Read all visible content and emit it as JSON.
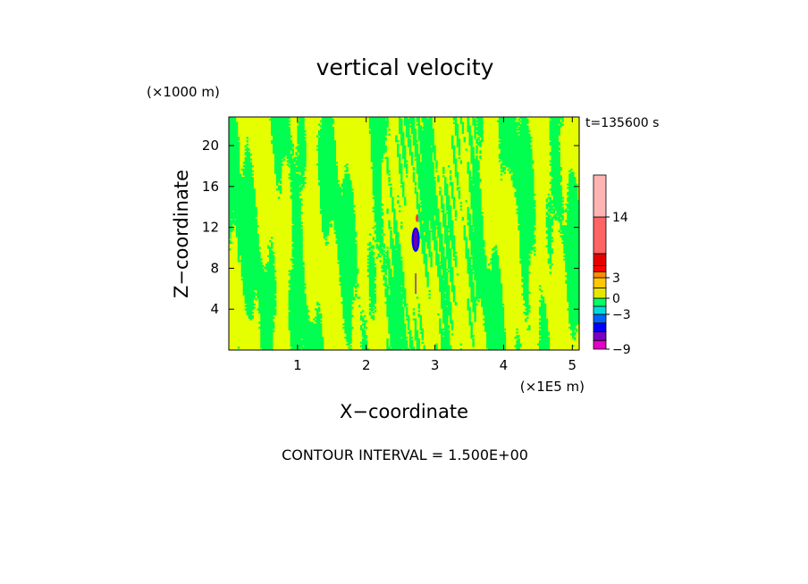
{
  "chart_data": {
    "type": "heatmap",
    "title": "vertical velocity",
    "xlabel": "X−coordinate",
    "ylabel": "Z−coordinate",
    "x_unit": "(×1E5 m)",
    "y_unit": "(×1000 m)",
    "time_label": "t=135600 s",
    "footer": "CONTOUR INTERVAL = 1.500E+00",
    "xlim": [
      0,
      5.1
    ],
    "ylim": [
      0,
      22.8
    ],
    "x_ticks": [
      1,
      2,
      3,
      4,
      5
    ],
    "x_tick_labels": [
      "1",
      "2",
      "3",
      "4",
      "5"
    ],
    "y_ticks": [
      4,
      8,
      12,
      16,
      20
    ],
    "y_tick_labels": [
      "4",
      "8",
      "12",
      "16",
      "20"
    ],
    "colorbar": {
      "levels": [
        -9,
        -7.5,
        -6,
        -4.5,
        -3,
        -1.5,
        0,
        1.5,
        3,
        4.5,
        6,
        9,
        14,
        18
      ],
      "colors": [
        "#e600c8",
        "#7a00c8",
        "#0000ff",
        "#0064ff",
        "#00dcdc",
        "#00ff64",
        "#e6e600",
        "#ffc800",
        "#ff8c00",
        "#ff0000",
        "#e60000",
        "#ff6464",
        "#ffb4b4"
      ],
      "tick_values": [
        -9,
        -3,
        0,
        3,
        14
      ],
      "tick_labels": [
        "−9",
        "−3",
        "0",
        "3",
        "14"
      ]
    },
    "field_colors": {
      "updraft_weak": "#e6ff00",
      "downdraft_weak": "#00ff50",
      "core_strong_down": "#6a00b4",
      "core_strong_down_edge": "#0000ff",
      "core_strong_up": "#ff3c3c"
    },
    "strong_features": [
      {
        "x": 2.72,
        "z_from": 9.6,
        "z_to": 12.0,
        "class": "strong_down"
      },
      {
        "x": 2.72,
        "z_from": 5.5,
        "z_to": 7.5,
        "class": "weak_down_streak"
      },
      {
        "x": 2.74,
        "z_from": 12.6,
        "z_to": 13.2,
        "class": "strong_up"
      }
    ]
  }
}
